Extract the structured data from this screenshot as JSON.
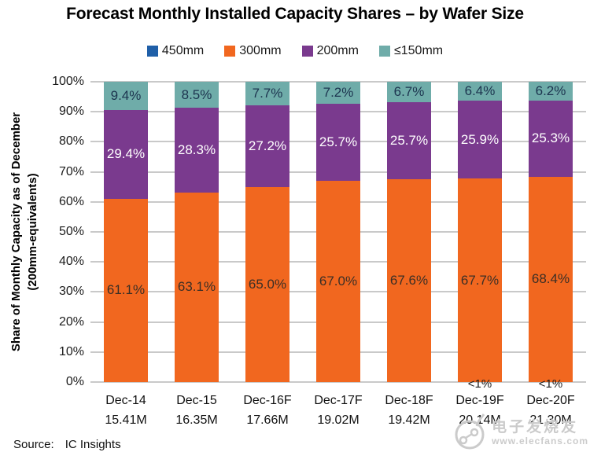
{
  "title": "Forecast Monthly Installed Capacity Shares – by Wafer Size",
  "y_axis": {
    "title_line1": "Share of Monthly  Capacity as of December",
    "title_line2": "(200mm-equivalents)",
    "tick_labels": [
      "0%",
      "10%",
      "20%",
      "30%",
      "40%",
      "50%",
      "60%",
      "70%",
      "80%",
      "90%",
      "100%"
    ]
  },
  "source": {
    "label": "Source:",
    "value": "IC Insights"
  },
  "watermark": {
    "line1": "电子发烧友",
    "line2": "www.elecfans.com"
  },
  "colors": {
    "grid": "#C9C9C9",
    "background": "#FFFFFF"
  },
  "chart_data": {
    "type": "bar",
    "stacked": true,
    "title": "Forecast Monthly Installed Capacity Shares – by Wafer Size",
    "ylabel": "Share of Monthly Capacity as of December (200mm-equivalents)",
    "ylim": [
      0,
      100
    ],
    "ytick_step": 10,
    "grid": true,
    "legend_position": "top",
    "categories": [
      "Dec-14",
      "Dec-15",
      "Dec-16F",
      "Dec-17F",
      "Dec-18F",
      "Dec-19F",
      "Dec-20F"
    ],
    "category_sublabels": [
      "15.41M",
      "16.35M",
      "17.66M",
      "19.02M",
      "19.42M",
      "20.14M",
      "21.30M"
    ],
    "series": [
      {
        "name": "450mm",
        "color": "#1F5FA8",
        "label_color": "#1F1F1F",
        "values": [
          0,
          0,
          0,
          0,
          0,
          0,
          0
        ],
        "data_labels": [
          "",
          "",
          "",
          "",
          "",
          "<1%",
          "<1%"
        ],
        "note": "450mm share shown as <1% for Dec-19F and Dec-20F; segment too small to be visible"
      },
      {
        "name": "300mm",
        "color": "#F1671F",
        "label_color": "#3B2F26",
        "values": [
          61.1,
          63.1,
          65.0,
          67.0,
          67.6,
          67.7,
          68.4
        ],
        "data_labels": [
          "61.1%",
          "63.1%",
          "65.0%",
          "67.0%",
          "67.6%",
          "67.7%",
          "68.4%"
        ]
      },
      {
        "name": "200mm",
        "color": "#7A3A8E",
        "label_color": "#FFFFFF",
        "values": [
          29.4,
          28.3,
          27.2,
          25.7,
          25.7,
          25.9,
          25.3
        ],
        "data_labels": [
          "29.4%",
          "28.3%",
          "27.2%",
          "25.7%",
          "25.7%",
          "25.9%",
          "25.3%"
        ]
      },
      {
        "name": "≤150mm",
        "color": "#6FACA9",
        "label_color": "#1C344F",
        "values": [
          9.4,
          8.5,
          7.7,
          7.2,
          6.7,
          6.4,
          6.2
        ],
        "data_labels": [
          "9.4%",
          "8.5%",
          "7.7%",
          "7.2%",
          "6.7%",
          "6.4%",
          "6.2%"
        ]
      }
    ]
  }
}
